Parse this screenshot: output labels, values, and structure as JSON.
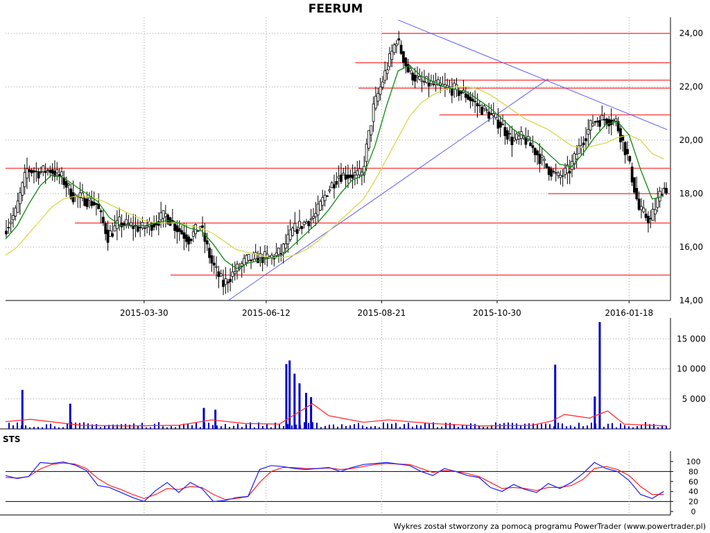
{
  "title": "FEERUM",
  "footer": "Wykres został stworzony za pomocą programu PowerTrader (www.powertrader.pl)",
  "colors": {
    "candle": "#000000",
    "ma_short": "#0a8a0a",
    "ma_long": "#d8d84a",
    "support_resistance": "#ff4a4a",
    "trendline": "#5a5aff",
    "volume_bars": "#0000cc",
    "volume_avg": "#ff3030",
    "sto_k": "#1a1aff",
    "sto_d": "#ff2020"
  },
  "chart_data": [
    {
      "type": "line",
      "panel": "price",
      "ylim": [
        14,
        24.6
      ],
      "x_range": [
        "2015-01-05",
        "2016-02-10"
      ],
      "y_ticks": [
        14,
        16,
        18,
        20,
        22,
        24
      ],
      "y_tick_labels": [
        "14,00",
        "16,00",
        "18,00",
        "20,00",
        "22,00",
        "24,00"
      ],
      "x_ticks": [
        "2015-03-30",
        "2015-06-12",
        "2015-08-21",
        "2015-10-30",
        "2016-01-18"
      ],
      "x_tick_labels": [
        "2015-03-30",
        "2015-06-12",
        "2015-08-21",
        "2015-10-30",
        "2016-01-18"
      ],
      "grid": true,
      "close_series": {
        "x": [
          "2015-01-05",
          "2015-01-12",
          "2015-01-19",
          "2015-01-26",
          "2015-02-02",
          "2015-02-09",
          "2015-02-16",
          "2015-02-23",
          "2015-03-02",
          "2015-03-09",
          "2015-03-16",
          "2015-03-23",
          "2015-03-30",
          "2015-04-06",
          "2015-04-13",
          "2015-04-20",
          "2015-04-27",
          "2015-05-04",
          "2015-05-11",
          "2015-05-18",
          "2015-05-25",
          "2015-06-01",
          "2015-06-08",
          "2015-06-15",
          "2015-06-22",
          "2015-06-29",
          "2015-07-06",
          "2015-07-13",
          "2015-07-20",
          "2015-07-27",
          "2015-08-03",
          "2015-08-10",
          "2015-08-17",
          "2015-08-24",
          "2015-08-31",
          "2015-09-07",
          "2015-09-14",
          "2015-09-21",
          "2015-09-28",
          "2015-10-05",
          "2015-10-12",
          "2015-10-19",
          "2015-10-26",
          "2015-11-02",
          "2015-11-09",
          "2015-11-16",
          "2015-11-23",
          "2015-11-30",
          "2015-12-07",
          "2015-12-14",
          "2015-12-21",
          "2015-12-28",
          "2016-01-04",
          "2016-01-11",
          "2016-01-18",
          "2016-01-25",
          "2016-02-01",
          "2016-02-08"
        ],
        "values": [
          16.6,
          17.3,
          18.9,
          18.8,
          18.9,
          18.6,
          17.9,
          17.8,
          17.6,
          16.4,
          16.9,
          16.8,
          16.7,
          16.9,
          17.2,
          16.7,
          16.3,
          16.8,
          15.4,
          14.6,
          15.1,
          15.5,
          15.6,
          15.6,
          15.8,
          16.6,
          16.9,
          17.2,
          18.1,
          18.7,
          18.7,
          18.7,
          21.2,
          22.5,
          23.8,
          22.6,
          22.2,
          22.1,
          22.0,
          21.9,
          21.7,
          21.3,
          21.0,
          20.6,
          20.0,
          20.1,
          19.6,
          19.0,
          18.6,
          18.9,
          19.9,
          20.7,
          20.8,
          20.7,
          19.4,
          17.4,
          17.0,
          18.2
        ]
      },
      "series": [
        {
          "values": [
            16.3,
            16.8,
            17.6,
            18.3,
            18.7,
            18.6,
            18.3,
            18.0,
            17.7,
            17.1,
            16.8,
            16.8,
            16.8,
            16.9,
            17.0,
            16.9,
            16.7,
            16.6,
            16.1,
            15.5,
            15.2,
            15.4,
            15.5,
            15.6,
            15.7,
            16.1,
            16.5,
            16.9,
            17.4,
            18.0,
            18.5,
            18.7,
            19.8,
            21.3,
            22.6,
            22.8,
            22.4,
            22.2,
            22.0,
            21.9,
            21.8,
            21.5,
            21.2,
            20.8,
            20.4,
            20.1,
            19.9,
            19.5,
            19.1,
            19.0,
            19.5,
            20.1,
            20.6,
            20.7,
            20.2,
            18.9,
            17.8,
            17.9
          ]
        },
        {
          "values": [
            15.7,
            16.0,
            16.5,
            17.0,
            17.5,
            17.8,
            17.9,
            17.9,
            17.8,
            17.6,
            17.4,
            17.2,
            17.0,
            16.9,
            16.9,
            16.9,
            16.8,
            16.7,
            16.5,
            16.2,
            15.9,
            15.8,
            15.7,
            15.6,
            15.6,
            15.7,
            15.9,
            16.2,
            16.6,
            17.0,
            17.4,
            17.8,
            18.5,
            19.3,
            20.1,
            20.9,
            21.4,
            21.7,
            21.9,
            22.0,
            22.0,
            21.9,
            21.7,
            21.4,
            21.1,
            20.8,
            20.6,
            20.4,
            20.1,
            19.8,
            19.7,
            19.8,
            19.9,
            20.1,
            20.2,
            20.0,
            19.5,
            19.3
          ]
        }
      ],
      "horizontal_levels": [
        {
          "y": 24.0,
          "x_start": "2015-08-21"
        },
        {
          "y": 22.9,
          "x_start": "2015-08-05"
        },
        {
          "y": 22.25,
          "x_start": "2015-09-28"
        },
        {
          "y": 21.95,
          "x_start": "2015-08-07"
        },
        {
          "y": 20.95,
          "x_start": "2015-09-25"
        },
        {
          "y": 18.95,
          "x_start": "2015-01-05"
        },
        {
          "y": 18.0,
          "x_start": "2015-11-30"
        },
        {
          "y": 16.9,
          "x_start": "2015-02-16"
        },
        {
          "y": 14.95,
          "x_start": "2015-04-15"
        }
      ],
      "trendlines": [
        {
          "from": [
            "2015-05-20",
            14.0
          ],
          "to": [
            "2015-11-30",
            22.3
          ]
        },
        {
          "from": [
            "2015-08-31",
            24.5
          ],
          "to": [
            "2016-02-10",
            20.4
          ]
        }
      ]
    },
    {
      "type": "bar",
      "panel": "volume",
      "ylim": [
        0,
        18500
      ],
      "y_ticks": [
        5000,
        10000,
        15000
      ],
      "y_tick_labels": [
        "5 000",
        "10 000",
        "15 000"
      ],
      "grid": true,
      "spikes": [
        {
          "x": "2015-01-15",
          "value": 6500
        },
        {
          "x": "2015-02-13",
          "value": 4200
        },
        {
          "x": "2015-05-05",
          "value": 3500
        },
        {
          "x": "2015-05-12",
          "value": 3200
        },
        {
          "x": "2015-06-24",
          "value": 10800
        },
        {
          "x": "2015-06-26",
          "value": 11400
        },
        {
          "x": "2015-06-29",
          "value": 9200
        },
        {
          "x": "2015-07-02",
          "value": 7600
        },
        {
          "x": "2015-07-06",
          "value": 6000
        },
        {
          "x": "2015-07-09",
          "value": 5300
        },
        {
          "x": "2015-12-04",
          "value": 10700
        },
        {
          "x": "2015-12-28",
          "value": 5400
        },
        {
          "x": "2015-12-31",
          "value": 17800
        }
      ],
      "average": {
        "x": [
          "2015-01-05",
          "2015-01-20",
          "2015-02-20",
          "2015-03-20",
          "2015-04-20",
          "2015-05-10",
          "2015-05-30",
          "2015-06-20",
          "2015-06-30",
          "2015-07-10",
          "2015-07-20",
          "2015-08-10",
          "2015-08-25",
          "2015-09-20",
          "2015-10-20",
          "2015-11-20",
          "2015-12-02",
          "2015-12-10",
          "2015-12-25",
          "2016-01-05",
          "2016-01-15",
          "2016-02-10"
        ],
        "values": [
          1200,
          1600,
          600,
          500,
          600,
          1500,
          900,
          800,
          2500,
          4200,
          2200,
          1100,
          1500,
          900,
          500,
          600,
          1300,
          2400,
          1800,
          3000,
          800,
          500
        ]
      }
    },
    {
      "type": "line",
      "panel": "stochastic",
      "title": "STS",
      "ylim": [
        0,
        100
      ],
      "y_ticks": [
        0,
        20,
        40,
        60,
        80,
        100
      ],
      "y_tick_labels": [
        "0",
        "20",
        "40",
        "60",
        "80",
        "100"
      ],
      "reference_lines": [
        20,
        80
      ],
      "grid": true,
      "series": [
        {
          "values": [
            72,
            66,
            70,
            98,
            96,
            99,
            93,
            82,
            52,
            48,
            38,
            28,
            20,
            42,
            58,
            38,
            58,
            46,
            20,
            22,
            28,
            30,
            84,
            92,
            90,
            86,
            84,
            86,
            88,
            80,
            88,
            94,
            96,
            98,
            95,
            92,
            80,
            72,
            86,
            80,
            72,
            68,
            48,
            40,
            54,
            44,
            38,
            56,
            46,
            58,
            76,
            98,
            86,
            80,
            62,
            34,
            26,
            40
          ]
        },
        {
          "values": [
            68,
            67,
            70,
            85,
            94,
            97,
            95,
            86,
            66,
            52,
            44,
            34,
            26,
            34,
            46,
            44,
            50,
            48,
            34,
            24,
            26,
            30,
            58,
            80,
            88,
            88,
            86,
            86,
            87,
            84,
            86,
            90,
            94,
            96,
            95,
            94,
            86,
            78,
            82,
            80,
            76,
            70,
            58,
            46,
            48,
            46,
            42,
            48,
            48,
            52,
            64,
            86,
            90,
            84,
            72,
            50,
            34,
            34
          ]
        }
      ]
    }
  ]
}
